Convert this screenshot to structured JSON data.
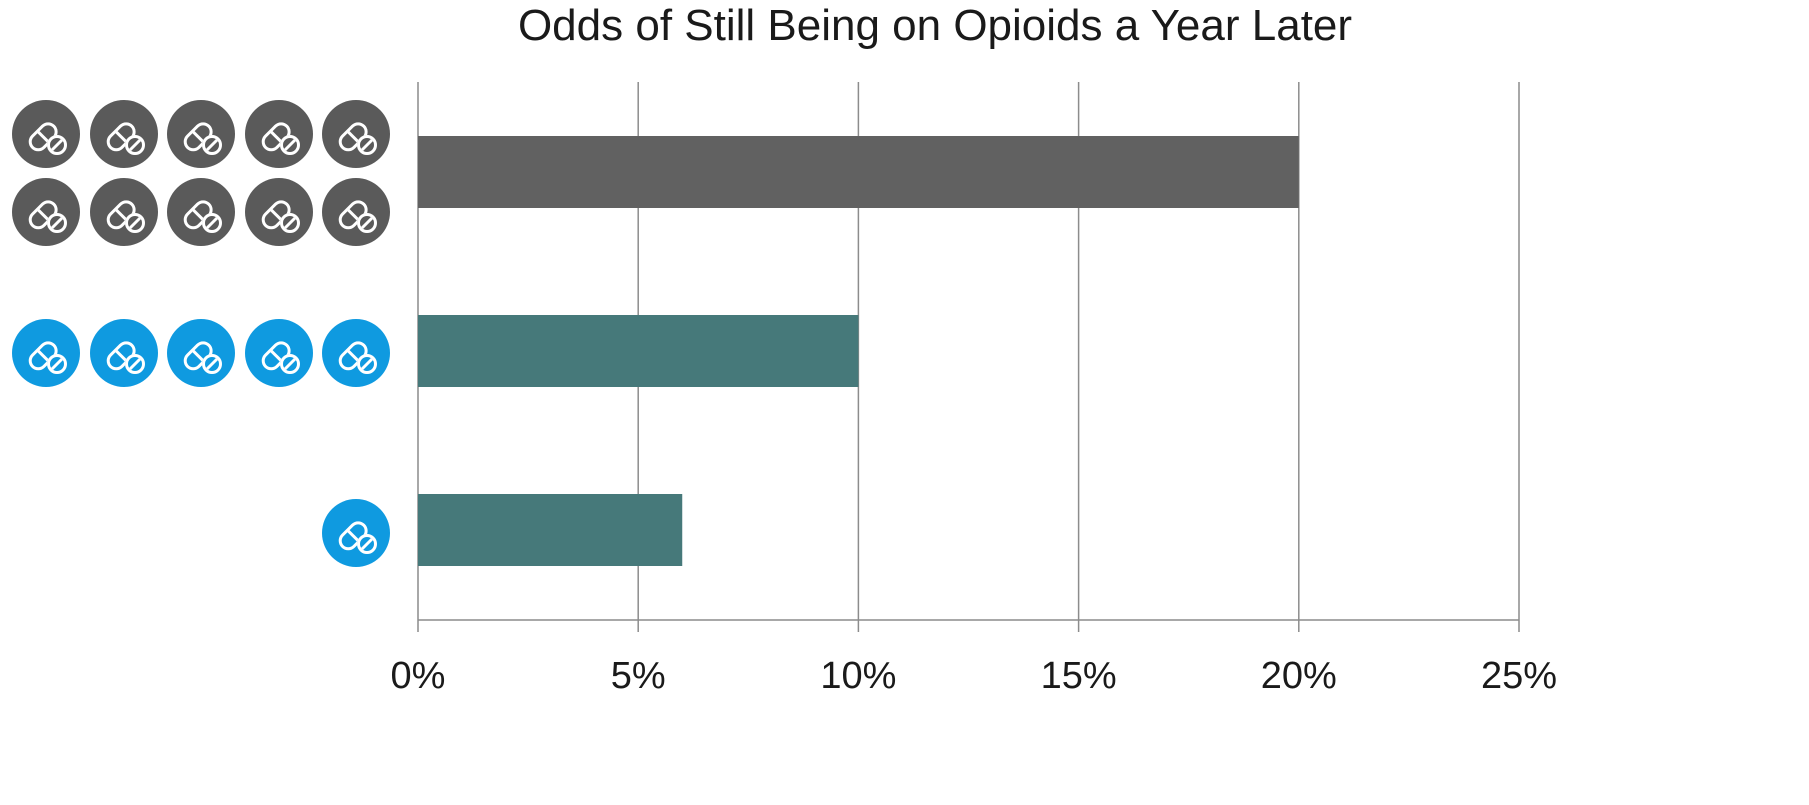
{
  "chart_data": {
    "type": "bar",
    "orientation": "horizontal",
    "title": "Odds of Still Being on Opioids a Year Later",
    "xlabel": "",
    "ylabel": "",
    "xlim": [
      0,
      25
    ],
    "x_ticks": [
      "0%",
      "5%",
      "10%",
      "15%",
      "20%",
      "25%"
    ],
    "grid": "vertical",
    "legend": "none",
    "categories": [
      "10 pills",
      "5 pills",
      "1 pill"
    ],
    "values": [
      20,
      10,
      6
    ],
    "pill_icon_counts": [
      10,
      5,
      1
    ],
    "colors": {
      "bar_dark": "#616161",
      "bar_teal": "#46797a",
      "icon_gray": "#5a5a5a",
      "icon_blue": "#0f9ae0",
      "gridline": "#8c8c8c",
      "text": "#1a1a1a"
    },
    "bar_colors": [
      "bar_dark",
      "bar_teal",
      "bar_teal"
    ],
    "icon_colors": [
      "icon_gray",
      "icon_blue",
      "icon_blue"
    ],
    "icon_name": "pill-icon"
  }
}
